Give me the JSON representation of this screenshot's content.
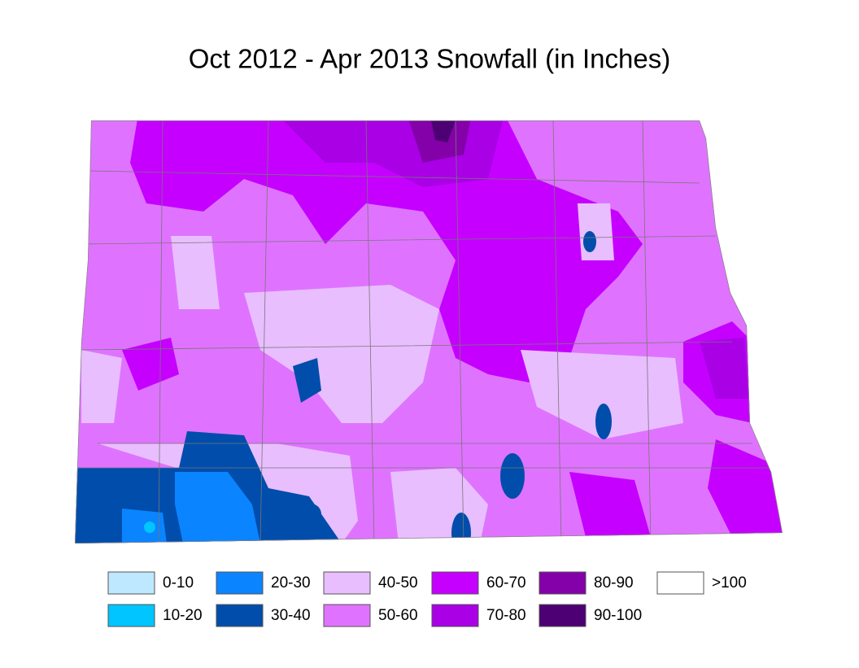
{
  "title": "Oct 2012 - Apr 2013 Snowfall (in Inches)",
  "legend": {
    "items": [
      {
        "label": "0-10",
        "color": "#bee8ff"
      },
      {
        "label": "10-20",
        "color": "#00c5ff"
      },
      {
        "label": "20-30",
        "color": "#0a84ff"
      },
      {
        "label": "30-40",
        "color": "#004dab"
      },
      {
        "label": "40-50",
        "color": "#e8beff"
      },
      {
        "label": "50-60",
        "color": "#df73ff"
      },
      {
        "label": "60-70",
        "color": "#c500ff"
      },
      {
        "label": "70-80",
        "color": "#a900e6"
      },
      {
        "label": "80-90",
        "color": "#8400a8"
      },
      {
        "label": "90-100",
        "color": "#4c0073"
      },
      {
        "label": ">100",
        "color": "#ffffff"
      }
    ]
  }
}
